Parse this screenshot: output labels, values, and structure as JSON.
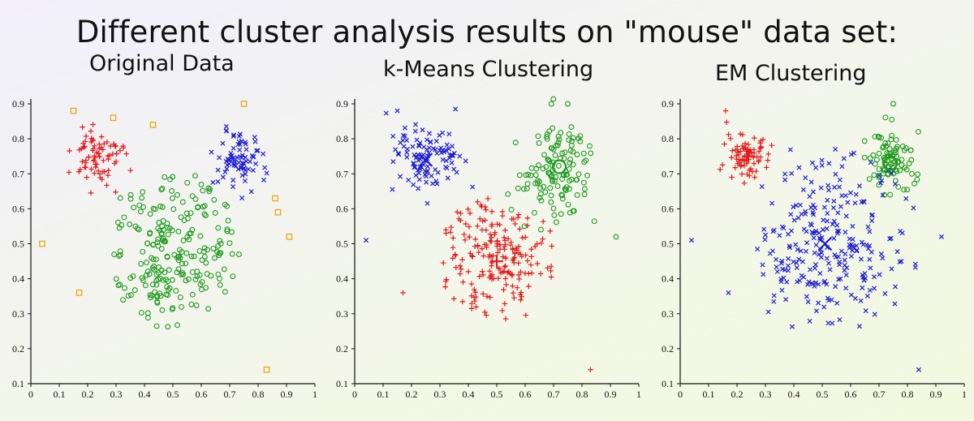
{
  "title": "Different cluster analysis results on \"mouse\" data set:",
  "colors": {
    "red": "#e41a1c",
    "green": "#1f9a1f",
    "blue": "#1e1ed2",
    "orange": "#f0a000",
    "axis": "#111111"
  },
  "chart_data": [
    {
      "type": "scatter",
      "title": "Original Data",
      "xlim": [
        0,
        1
      ],
      "ylim": [
        0.1,
        0.9
      ],
      "xticks": [
        "0",
        "0.1",
        "0.2",
        "0.3",
        "0.4",
        "0.5",
        "0.6",
        "0.7",
        "0.8",
        "0.9",
        "1"
      ],
      "yticks": [
        "0.1",
        "0.2",
        "0.3",
        "0.4",
        "0.5",
        "0.6",
        "0.7",
        "0.8",
        "0.9"
      ],
      "series": [
        {
          "name": "red cluster",
          "marker": "plus",
          "color": "red",
          "cluster": {
            "center": [
              0.23,
              0.75
            ],
            "spread": [
              0.045,
              0.04
            ],
            "n": 80
          }
        },
        {
          "name": "blue cluster",
          "marker": "x",
          "color": "blue",
          "cluster": {
            "center": [
              0.73,
              0.74
            ],
            "spread": [
              0.045,
              0.04
            ],
            "n": 80
          }
        },
        {
          "name": "green cluster",
          "marker": "circle",
          "color": "green",
          "cluster": {
            "center": [
              0.5,
              0.48
            ],
            "spread": [
              0.13,
              0.12
            ],
            "n": 230,
            "xrange": [
              0.28,
              0.75
            ],
            "yrange": [
              0.26,
              0.72
            ]
          }
        },
        {
          "name": "noise",
          "marker": "square",
          "color": "orange",
          "x": [
            0.15,
            0.29,
            0.43,
            0.75,
            0.86,
            0.87,
            0.04,
            0.17,
            0.91,
            0.83
          ],
          "y": [
            0.88,
            0.86,
            0.84,
            0.9,
            0.63,
            0.59,
            0.5,
            0.36,
            0.52,
            0.14
          ]
        }
      ]
    },
    {
      "type": "scatter",
      "title": "k-Means Clustering",
      "xlim": [
        0,
        1
      ],
      "ylim": [
        0.1,
        0.9
      ],
      "xticks": [
        "0",
        "0.1",
        "0.2",
        "0.3",
        "0.4",
        "0.5",
        "0.6",
        "0.7",
        "0.8",
        "0.9",
        "1"
      ],
      "yticks": [
        "0.1",
        "0.2",
        "0.3",
        "0.4",
        "0.5",
        "0.6",
        "0.7",
        "0.8",
        "0.9"
      ],
      "series": [
        {
          "name": "blue cluster",
          "marker": "x",
          "color": "blue",
          "cluster": {
            "center": [
              0.25,
              0.74
            ],
            "spread": [
              0.06,
              0.05
            ],
            "n": 110
          },
          "extra": {
            "x": [
              0.04,
              0.15
            ],
            "y": [
              0.51,
              0.88
            ]
          }
        },
        {
          "name": "green cluster",
          "marker": "circle",
          "color": "green",
          "cluster": {
            "center": [
              0.71,
              0.71
            ],
            "spread": [
              0.06,
              0.07
            ],
            "n": 130
          },
          "extra": {
            "x": [
              0.75,
              0.92
            ],
            "y": [
              0.9,
              0.52
            ]
          }
        },
        {
          "name": "red cluster",
          "marker": "plus",
          "color": "red",
          "cluster": {
            "center": [
              0.5,
              0.46
            ],
            "spread": [
              0.11,
              0.1
            ],
            "n": 200,
            "xrange": [
              0.3,
              0.7
            ],
            "yrange": [
              0.26,
              0.64
            ]
          },
          "extra": {
            "x": [
              0.17,
              0.83
            ],
            "y": [
              0.36,
              0.14
            ]
          }
        }
      ],
      "centroids": [
        {
          "x": 0.25,
          "y": 0.74,
          "color": "blue"
        },
        {
          "x": 0.72,
          "y": 0.72,
          "color": "green"
        },
        {
          "x": 0.5,
          "y": 0.45,
          "color": "red"
        }
      ]
    },
    {
      "type": "scatter",
      "title": "EM Clustering",
      "xlim": [
        0,
        1
      ],
      "ylim": [
        0.1,
        0.9
      ],
      "xticks": [
        "0",
        "0.1",
        "0.2",
        "0.3",
        "0.4",
        "0.5",
        "0.6",
        "0.7",
        "0.8",
        "0.9",
        "1"
      ],
      "yticks": [
        "0.1",
        "0.2",
        "0.3",
        "0.4",
        "0.5",
        "0.6",
        "0.7",
        "0.8",
        "0.9"
      ],
      "series": [
        {
          "name": "red cluster",
          "marker": "plus",
          "color": "red",
          "cluster": {
            "center": [
              0.24,
              0.75
            ],
            "spread": [
              0.04,
              0.035
            ],
            "n": 80
          },
          "extra": {
            "x": [
              0.16
            ],
            "y": [
              0.88
            ]
          }
        },
        {
          "name": "green cluster",
          "marker": "circle",
          "color": "green",
          "cluster": {
            "center": [
              0.74,
              0.74
            ],
            "spread": [
              0.04,
              0.04
            ],
            "n": 90
          },
          "extra": {
            "x": [
              0.75
            ],
            "y": [
              0.9
            ]
          }
        },
        {
          "name": "blue cluster",
          "marker": "x",
          "color": "blue",
          "cluster": {
            "center": [
              0.52,
              0.5
            ],
            "spread": [
              0.15,
              0.15
            ],
            "n": 260,
            "xrange": [
              0.27,
              0.9
            ],
            "yrange": [
              0.26,
              0.84
            ]
          },
          "extra": {
            "x": [
              0.04,
              0.17,
              0.92,
              0.84
            ],
            "y": [
              0.51,
              0.36,
              0.52,
              0.14
            ]
          }
        }
      ],
      "centroids": [
        {
          "x": 0.24,
          "y": 0.75,
          "color": "red"
        },
        {
          "x": 0.74,
          "y": 0.73,
          "color": "green"
        },
        {
          "x": 0.51,
          "y": 0.5,
          "color": "blue"
        }
      ]
    }
  ]
}
